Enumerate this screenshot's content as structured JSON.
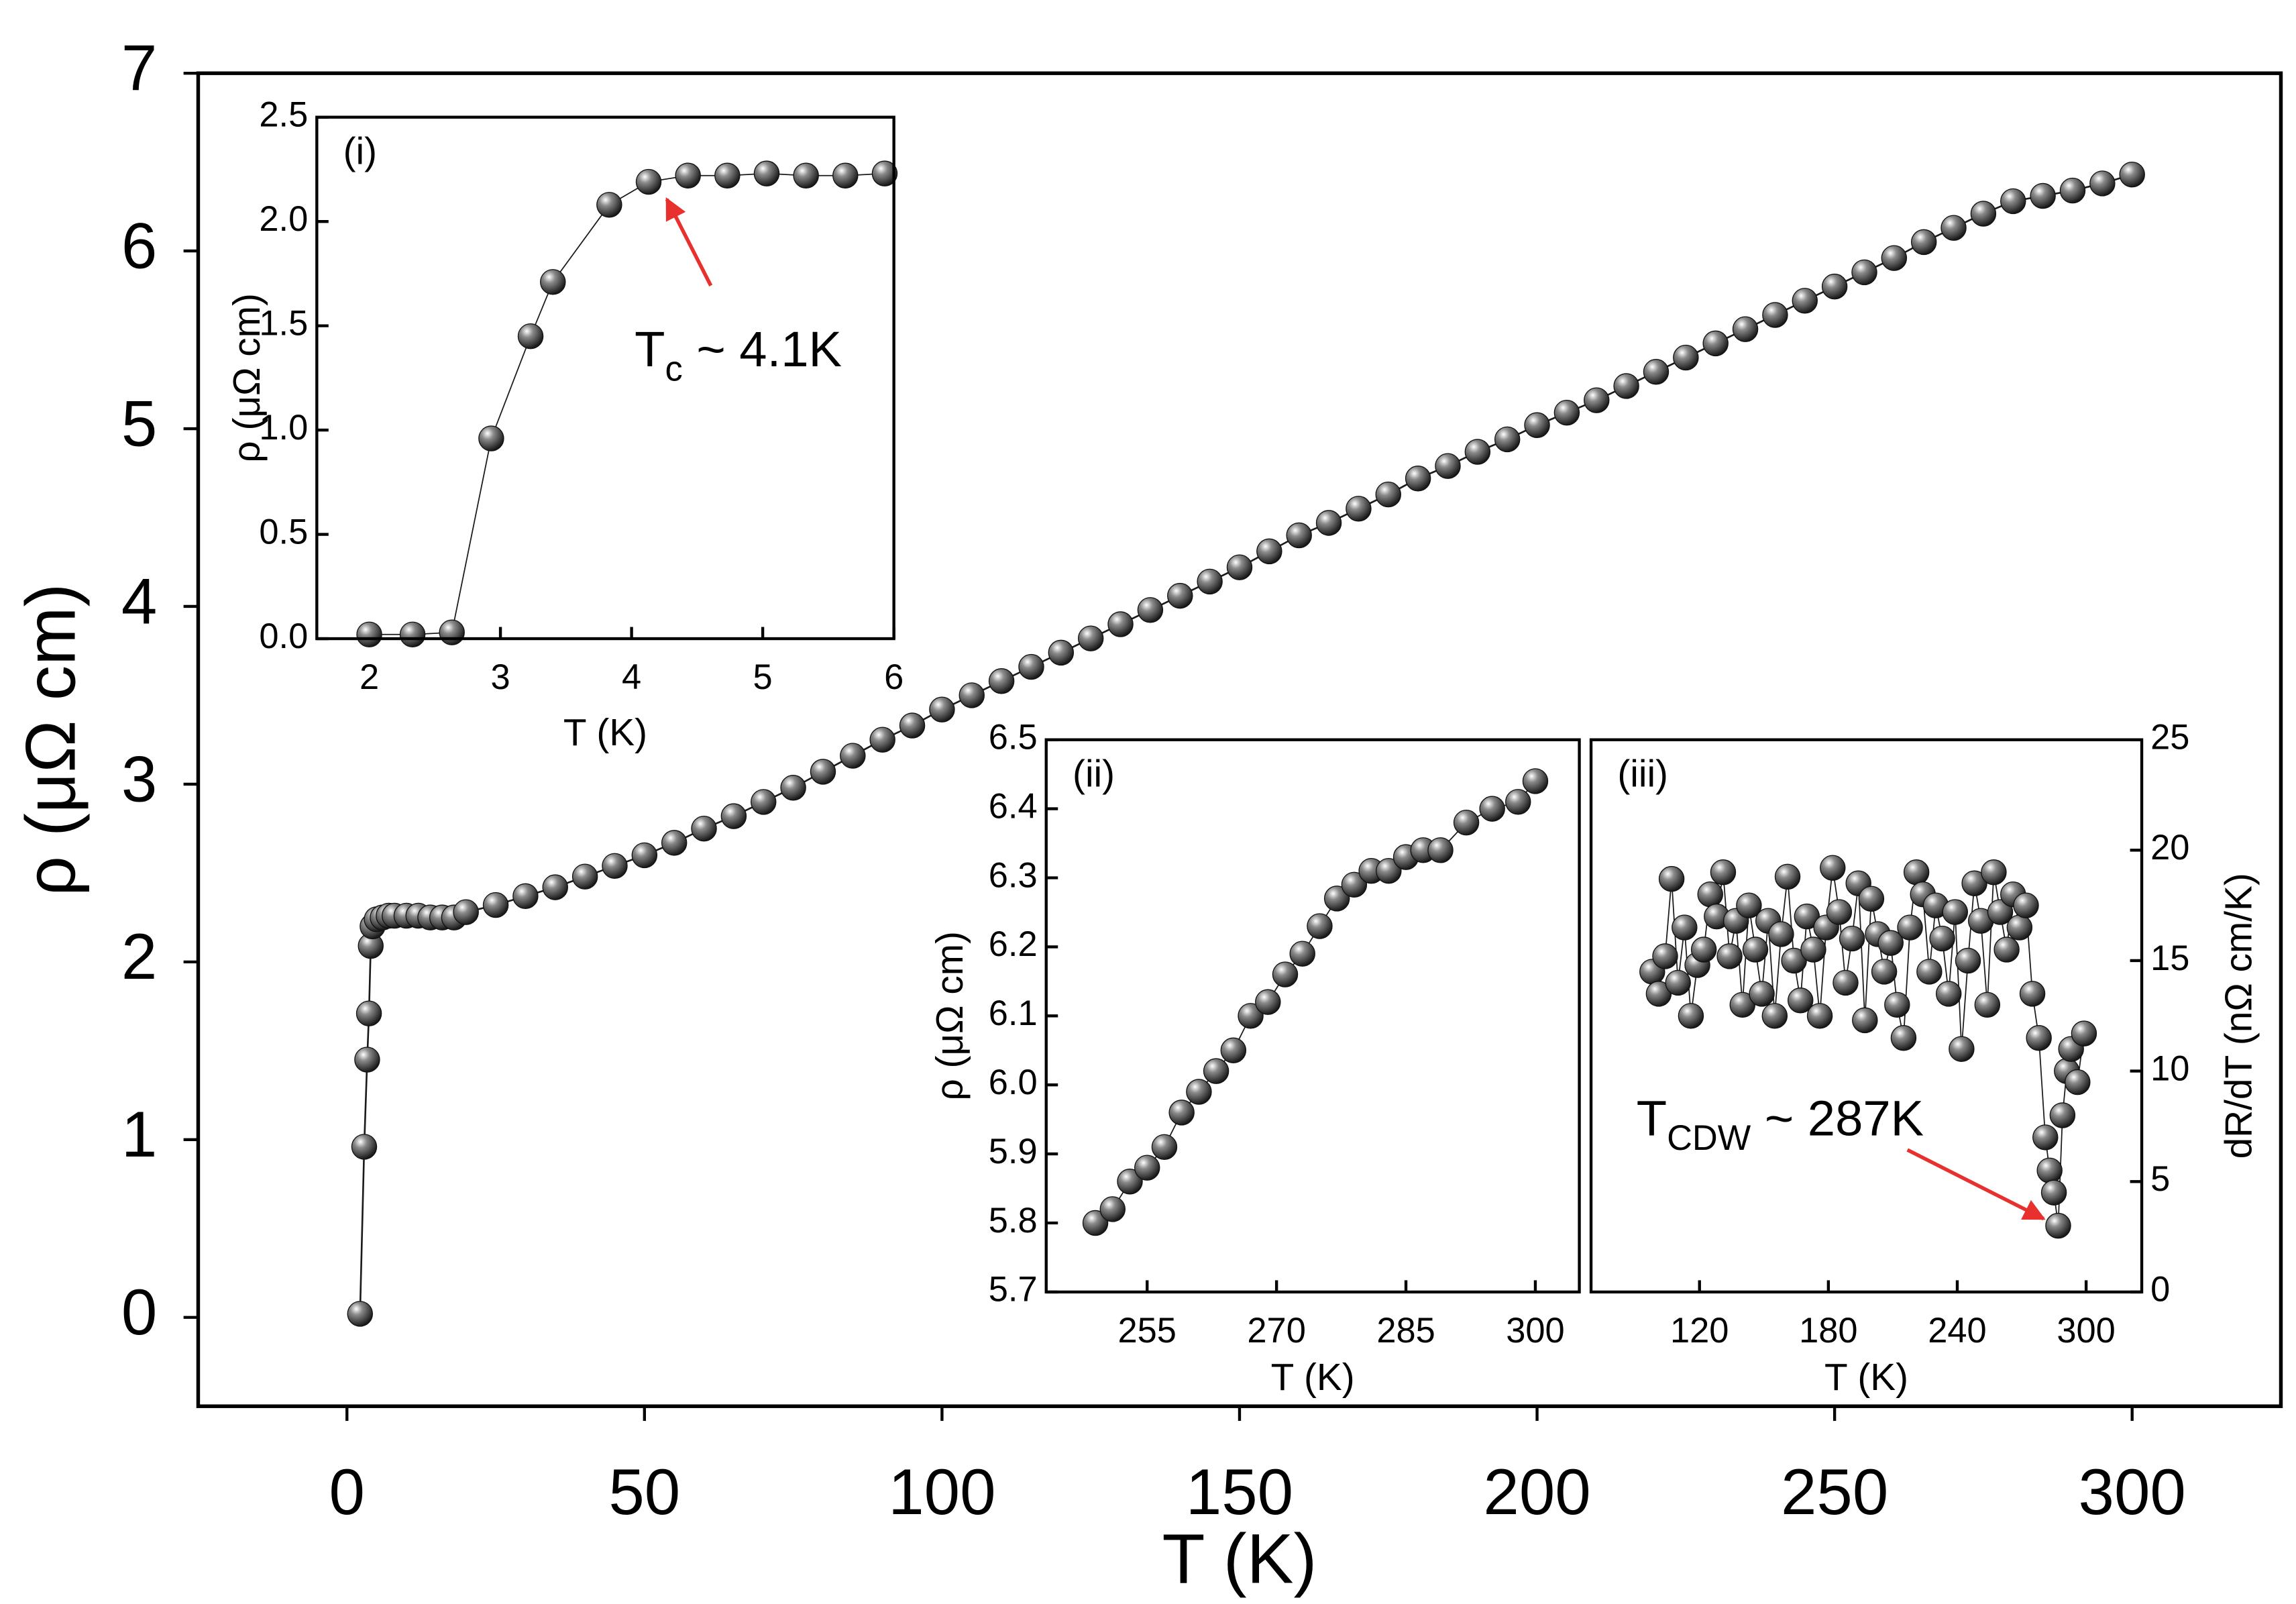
{
  "chart_data": [
    {
      "type": "line",
      "xlabel": "T (K)",
      "ylabel": "ρ (μΩ cm)",
      "xlim": [
        -25,
        325
      ],
      "xticks": [
        0,
        50,
        100,
        150,
        200,
        250,
        300
      ],
      "ylim": [
        -0.5,
        7
      ],
      "yticks": [
        0,
        1,
        2,
        3,
        4,
        5,
        6,
        7
      ],
      "x": [
        2.2,
        2.9,
        3.4,
        3.7,
        4.0,
        4.3,
        5,
        6,
        7,
        8,
        10,
        12,
        14,
        16,
        18,
        20,
        25,
        30,
        35,
        40,
        45,
        50,
        55,
        60,
        65,
        70,
        75,
        80,
        85,
        90,
        95,
        100,
        105,
        110,
        115,
        120,
        125,
        130,
        135,
        140,
        145,
        150,
        155,
        160,
        165,
        170,
        175,
        180,
        185,
        190,
        195,
        200,
        205,
        210,
        215,
        220,
        225,
        230,
        235,
        240,
        245,
        250,
        255,
        260,
        265,
        270,
        275,
        280,
        285,
        290,
        295,
        300
      ],
      "series": [
        {
          "color": "#1a1a1a",
          "values": [
            0.02,
            0.96,
            1.45,
            1.71,
            2.09,
            2.2,
            2.24,
            2.25,
            2.26,
            2.26,
            2.26,
            2.26,
            2.25,
            2.25,
            2.25,
            2.28,
            2.32,
            2.37,
            2.42,
            2.48,
            2.54,
            2.6,
            2.67,
            2.75,
            2.82,
            2.9,
            2.98,
            3.07,
            3.16,
            3.25,
            3.33,
            3.42,
            3.5,
            3.58,
            3.66,
            3.74,
            3.82,
            3.9,
            3.98,
            4.06,
            4.14,
            4.22,
            4.31,
            4.4,
            4.47,
            4.55,
            4.63,
            4.72,
            4.79,
            4.87,
            4.94,
            5.02,
            5.09,
            5.16,
            5.24,
            5.32,
            5.4,
            5.48,
            5.56,
            5.64,
            5.72,
            5.8,
            5.88,
            5.96,
            6.05,
            6.13,
            6.21,
            6.28,
            6.31,
            6.34,
            6.38,
            6.43
          ]
        }
      ]
    },
    {
      "type": "line",
      "label": "(i)",
      "xlabel": "T (K)",
      "ylabel": "ρ (μΩ cm)",
      "xlim": [
        1.6,
        6
      ],
      "xticks": [
        2,
        3,
        4,
        5,
        6
      ],
      "ylim": [
        0,
        2.5
      ],
      "yticks": [
        {
          "value": 0,
          "label": "0.0"
        },
        0.5,
        {
          "value": 1,
          "label": "1.0"
        },
        1.5,
        {
          "value": 2,
          "label": "2.0"
        },
        2.5
      ],
      "annotation": {
        "text": "T",
        "subscript": "c",
        "suffix": " ~ 4.1K"
      },
      "x": [
        2.0,
        2.33,
        2.63,
        2.93,
        3.23,
        3.4,
        3.83,
        4.13,
        4.43,
        4.73,
        5.03,
        5.33,
        5.63,
        5.93
      ],
      "series": [
        {
          "color": "#1a1a1a",
          "values": [
            0.02,
            0.02,
            0.03,
            0.96,
            1.45,
            1.71,
            2.08,
            2.19,
            2.22,
            2.22,
            2.23,
            2.22,
            2.22,
            2.23
          ]
        }
      ]
    },
    {
      "type": "line",
      "label": "(ii)",
      "xlabel": "T (K)",
      "ylabel": "ρ (μΩ cm)",
      "xlim": [
        243.3,
        305.1
      ],
      "xticks": [
        255,
        270,
        285,
        300
      ],
      "ylim": [
        5.7,
        6.5
      ],
      "yticks": [
        5.7,
        5.8,
        5.9,
        {
          "value": 6,
          "label": "6.0"
        },
        6.1,
        6.2,
        6.3,
        6.4,
        6.5
      ],
      "x": [
        249,
        251,
        253,
        255,
        257,
        259,
        261,
        263,
        265,
        267,
        269,
        271,
        273,
        275,
        277,
        279,
        281,
        283,
        285,
        287,
        289,
        292,
        295,
        298,
        300
      ],
      "series": [
        {
          "color": "#1a1a1a",
          "values": [
            5.8,
            5.82,
            5.86,
            5.88,
            5.91,
            5.96,
            5.99,
            6.02,
            6.05,
            6.1,
            6.12,
            6.16,
            6.19,
            6.23,
            6.27,
            6.29,
            6.31,
            6.31,
            6.33,
            6.34,
            6.34,
            6.38,
            6.4,
            6.41,
            6.44
          ]
        }
      ]
    },
    {
      "type": "line",
      "label": "(iii)",
      "xlabel": "T (K)",
      "y2label": "dR/dT (nΩ cm/K)",
      "xlim": [
        69.5,
        325.9
      ],
      "xticks": [
        120,
        180,
        240,
        300
      ],
      "y2lim": [
        0,
        25
      ],
      "y2ticks": [
        0,
        5,
        10,
        15,
        20,
        25
      ],
      "annotation": {
        "text": "T",
        "subscript": "CDW",
        "suffix": " ~ 287K"
      },
      "x": [
        98,
        101,
        104,
        107,
        110,
        113,
        116,
        119,
        122,
        125,
        128,
        131,
        134,
        137,
        140,
        143,
        146,
        149,
        152,
        155,
        158,
        161,
        164,
        167,
        170,
        173,
        176,
        179,
        182,
        185,
        188,
        191,
        194,
        197,
        200,
        203,
        206,
        209,
        212,
        215,
        218,
        221,
        224,
        227,
        230,
        233,
        236,
        239,
        242,
        245,
        248,
        251,
        254,
        257,
        260,
        263,
        266,
        269,
        272,
        275,
        278,
        281,
        283,
        285,
        287,
        289,
        291,
        293,
        296,
        299
      ],
      "series": [
        {
          "color": "#1a1a1a",
          "axis": "y2",
          "values": [
            14.5,
            13.5,
            15.2,
            18.7,
            14.0,
            16.5,
            12.5,
            14.8,
            15.5,
            18.0,
            17.0,
            19.0,
            15.2,
            16.8,
            13.0,
            17.5,
            15.5,
            13.5,
            16.8,
            12.5,
            16.2,
            18.8,
            15.0,
            13.2,
            17.0,
            15.5,
            12.5,
            16.5,
            19.2,
            17.2,
            14.0,
            16.0,
            18.5,
            12.3,
            17.8,
            16.2,
            14.5,
            15.8,
            13.0,
            11.5,
            16.5,
            19.0,
            18.0,
            14.5,
            17.5,
            16.0,
            13.5,
            17.2,
            11.0,
            15.0,
            18.5,
            16.8,
            13.0,
            19.0,
            17.2,
            15.5,
            18.0,
            16.5,
            17.5,
            13.5,
            11.5,
            7.0,
            5.5,
            4.5,
            3.0,
            8.0,
            10.0,
            11.0,
            9.5,
            11.7
          ]
        }
      ]
    }
  ]
}
